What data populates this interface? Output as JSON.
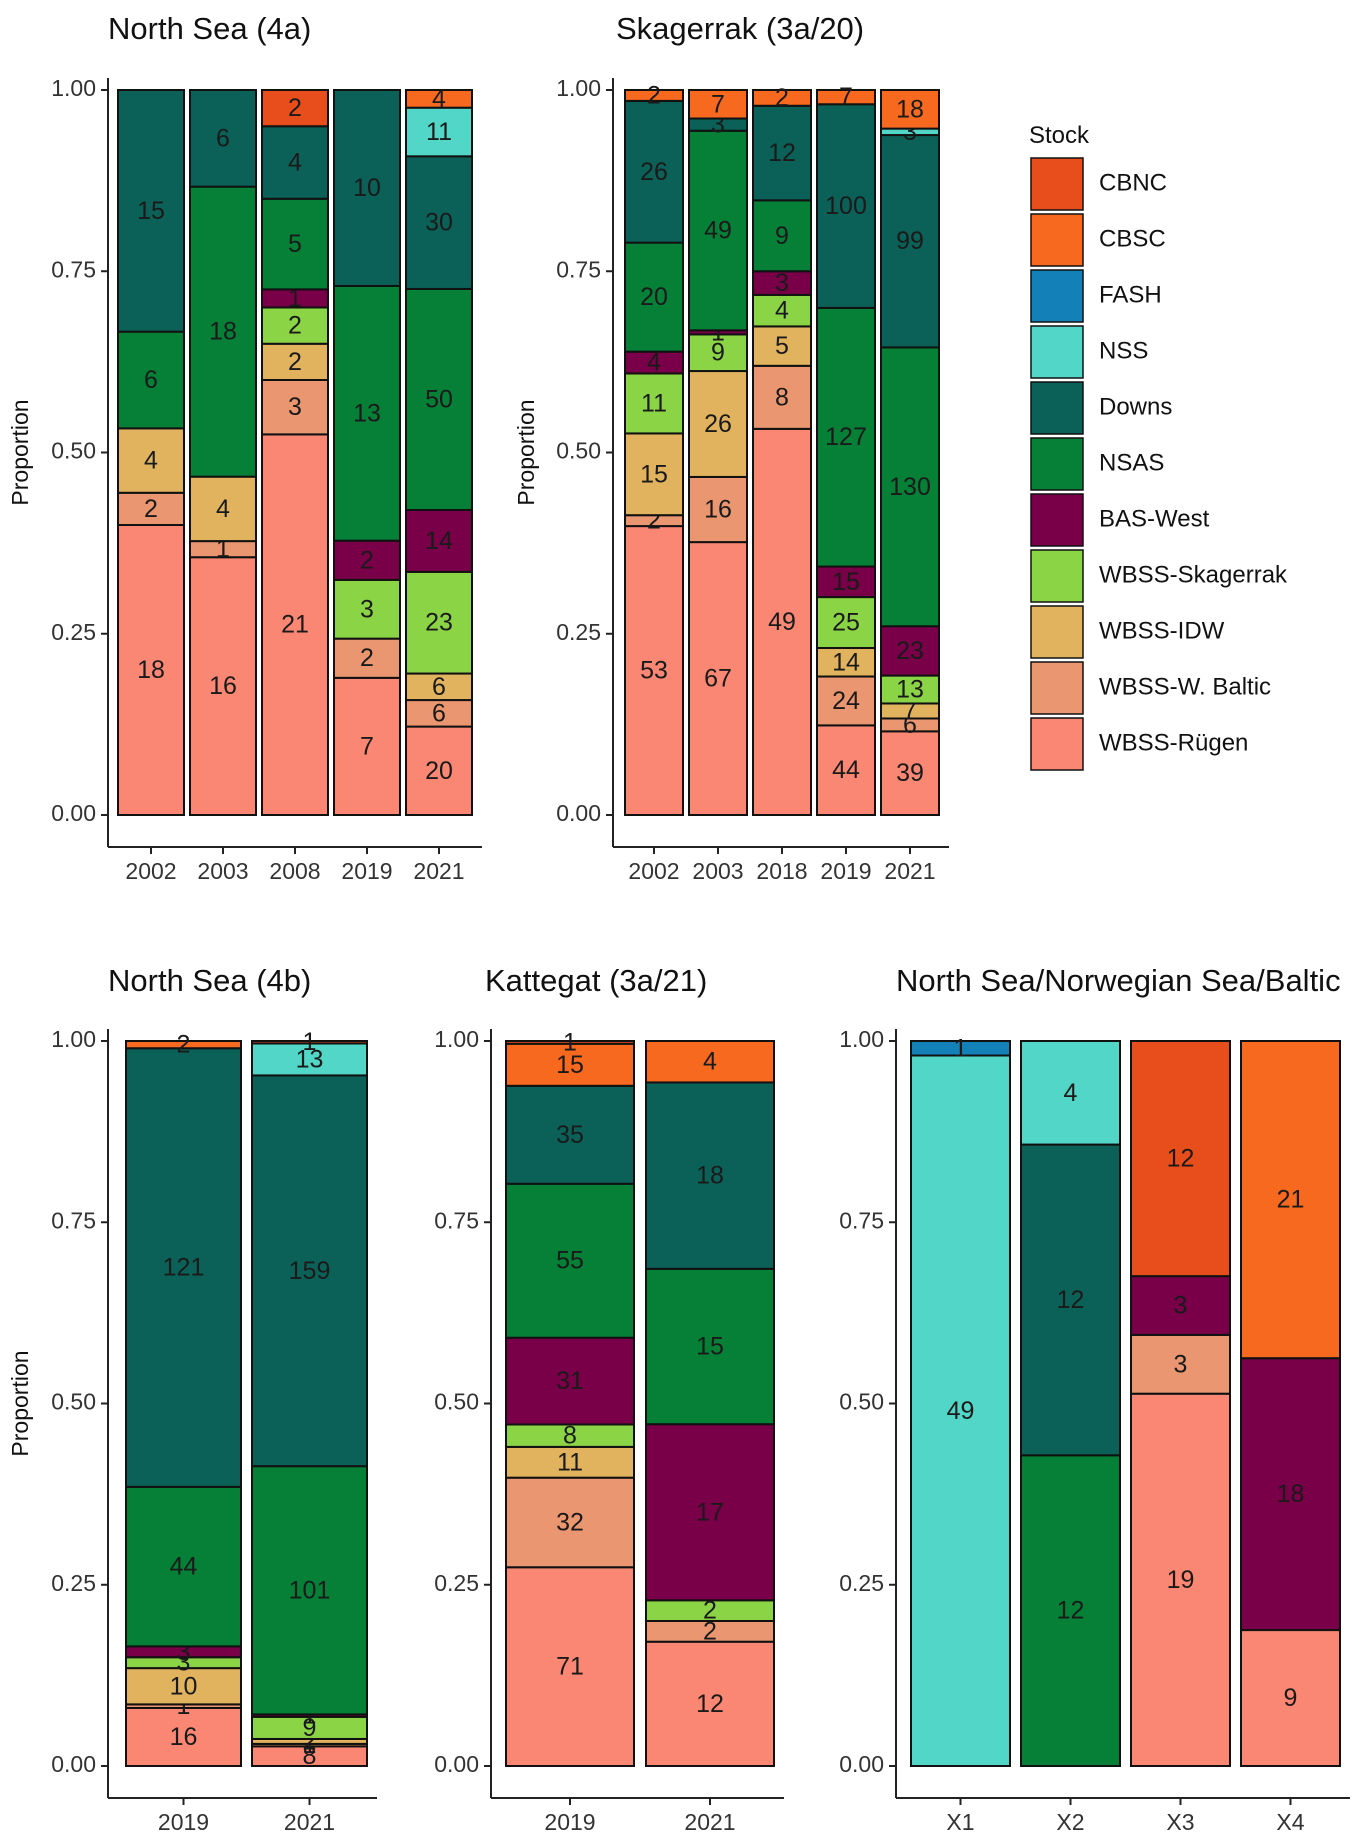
{
  "chart_data": [
    {
      "type": "bar",
      "stacked": true,
      "normalized": true,
      "title": "North Sea (4a)",
      "ylabel": "Proportion",
      "ylim": [
        0,
        1
      ],
      "yticks": [
        "0.00",
        "0.25",
        "0.50",
        "0.75",
        "1.00"
      ],
      "categories": [
        "2002",
        "2003",
        "2008",
        "2019",
        "2021"
      ],
      "series": [
        {
          "name": "WBSS-Rügen",
          "values": [
            18,
            16,
            21,
            7,
            20
          ]
        },
        {
          "name": "WBSS-W. Baltic",
          "values": [
            2,
            1,
            3,
            2,
            6
          ]
        },
        {
          "name": "WBSS-IDW",
          "values": [
            4,
            4,
            2,
            0,
            6
          ]
        },
        {
          "name": "WBSS-Skagerrak",
          "values": [
            0,
            0,
            2,
            3,
            23
          ]
        },
        {
          "name": "BAS-West",
          "values": [
            0,
            0,
            1,
            2,
            14
          ]
        },
        {
          "name": "NSAS",
          "values": [
            6,
            18,
            5,
            13,
            50
          ]
        },
        {
          "name": "Downs",
          "values": [
            15,
            6,
            4,
            10,
            30
          ]
        },
        {
          "name": "NSS",
          "values": [
            0,
            0,
            0,
            0,
            11
          ]
        },
        {
          "name": "FASH",
          "values": [
            0,
            0,
            0,
            0,
            0
          ]
        },
        {
          "name": "CBSC",
          "values": [
            0,
            0,
            0,
            0,
            4
          ]
        },
        {
          "name": "CBNC",
          "values": [
            0,
            0,
            2,
            0,
            0
          ]
        }
      ]
    },
    {
      "type": "bar",
      "stacked": true,
      "normalized": true,
      "title": "Skagerrak (3a/20)",
      "ylabel": "Proportion",
      "ylim": [
        0,
        1
      ],
      "yticks": [
        "0.00",
        "0.25",
        "0.50",
        "0.75",
        "1.00"
      ],
      "categories": [
        "2002",
        "2003",
        "2018",
        "2019",
        "2021"
      ],
      "series": [
        {
          "name": "WBSS-Rügen",
          "values": [
            53,
            67,
            49,
            44,
            39
          ]
        },
        {
          "name": "WBSS-W. Baltic",
          "values": [
            2,
            16,
            8,
            24,
            6
          ]
        },
        {
          "name": "WBSS-IDW",
          "values": [
            15,
            26,
            5,
            14,
            7
          ]
        },
        {
          "name": "WBSS-Skagerrak",
          "values": [
            11,
            9,
            4,
            25,
            13
          ]
        },
        {
          "name": "BAS-West",
          "values": [
            4,
            1,
            3,
            15,
            23
          ]
        },
        {
          "name": "NSAS",
          "values": [
            20,
            49,
            9,
            127,
            130
          ]
        },
        {
          "name": "Downs",
          "values": [
            26,
            3,
            12,
            100,
            99
          ]
        },
        {
          "name": "NSS",
          "values": [
            0,
            0,
            0,
            0,
            3
          ]
        },
        {
          "name": "FASH",
          "values": [
            0,
            0,
            0,
            0,
            0
          ]
        },
        {
          "name": "CBSC",
          "values": [
            2,
            7,
            2,
            7,
            18
          ]
        },
        {
          "name": "CBNC",
          "values": [
            0,
            0,
            0,
            0,
            0
          ]
        }
      ]
    },
    {
      "type": "bar",
      "stacked": true,
      "normalized": true,
      "title": "North Sea (4b)",
      "ylabel": "Proportion",
      "ylim": [
        0,
        1
      ],
      "yticks": [
        "0.00",
        "0.25",
        "0.50",
        "0.75",
        "1.00"
      ],
      "categories": [
        "2019",
        "2021"
      ],
      "series": [
        {
          "name": "WBSS-Rügen",
          "values": [
            16,
            8
          ]
        },
        {
          "name": "WBSS-W. Baltic",
          "values": [
            1,
            1
          ]
        },
        {
          "name": "WBSS-IDW",
          "values": [
            10,
            2
          ]
        },
        {
          "name": "WBSS-Skagerrak",
          "values": [
            3,
            9
          ]
        },
        {
          "name": "BAS-West",
          "values": [
            3,
            1
          ]
        },
        {
          "name": "NSAS",
          "values": [
            44,
            101
          ]
        },
        {
          "name": "Downs",
          "values": [
            121,
            159
          ]
        },
        {
          "name": "NSS",
          "values": [
            0,
            13
          ]
        },
        {
          "name": "FASH",
          "values": [
            0,
            0
          ]
        },
        {
          "name": "CBSC",
          "values": [
            2,
            0
          ]
        },
        {
          "name": "CBNC",
          "values": [
            0,
            1
          ]
        }
      ]
    },
    {
      "type": "bar",
      "stacked": true,
      "normalized": true,
      "title": "Kattegat (3a/21)",
      "ylim": [
        0,
        1
      ],
      "yticks": [
        "0.00",
        "0.25",
        "0.50",
        "0.75",
        "1.00"
      ],
      "categories": [
        "2019",
        "2021"
      ],
      "series": [
        {
          "name": "WBSS-Rügen",
          "values": [
            71,
            12
          ]
        },
        {
          "name": "WBSS-W. Baltic",
          "values": [
            32,
            2
          ]
        },
        {
          "name": "WBSS-IDW",
          "values": [
            11,
            0
          ]
        },
        {
          "name": "WBSS-Skagerrak",
          "values": [
            8,
            2
          ]
        },
        {
          "name": "BAS-West",
          "values": [
            31,
            17
          ]
        },
        {
          "name": "NSAS",
          "values": [
            55,
            15
          ]
        },
        {
          "name": "Downs",
          "values": [
            35,
            18
          ]
        },
        {
          "name": "NSS",
          "values": [
            0,
            0
          ]
        },
        {
          "name": "FASH",
          "values": [
            0,
            0
          ]
        },
        {
          "name": "CBSC",
          "values": [
            15,
            4
          ]
        },
        {
          "name": "CBNC",
          "values": [
            1,
            0
          ]
        }
      ]
    },
    {
      "type": "bar",
      "stacked": true,
      "normalized": true,
      "title": "North Sea/Norwegian Sea/Baltic",
      "ylim": [
        0,
        1
      ],
      "yticks": [
        "0.00",
        "0.25",
        "0.50",
        "0.75",
        "1.00"
      ],
      "categories": [
        "X1",
        "X2",
        "X3",
        "X4"
      ],
      "series": [
        {
          "name": "WBSS-Rügen",
          "values": [
            0,
            0,
            19,
            9
          ]
        },
        {
          "name": "WBSS-W. Baltic",
          "values": [
            0,
            0,
            3,
            0
          ]
        },
        {
          "name": "WBSS-IDW",
          "values": [
            0,
            0,
            0,
            0
          ]
        },
        {
          "name": "WBSS-Skagerrak",
          "values": [
            0,
            0,
            0,
            0
          ]
        },
        {
          "name": "BAS-West",
          "values": [
            0,
            0,
            3,
            18
          ]
        },
        {
          "name": "NSAS",
          "values": [
            0,
            12,
            0,
            0
          ]
        },
        {
          "name": "Downs",
          "values": [
            0,
            12,
            0,
            0
          ]
        },
        {
          "name": "NSS",
          "values": [
            49,
            4,
            0,
            0
          ]
        },
        {
          "name": "FASH",
          "values": [
            1,
            0,
            0,
            0
          ]
        },
        {
          "name": "CBSC",
          "values": [
            0,
            0,
            0,
            21
          ]
        },
        {
          "name": "CBNC",
          "values": [
            0,
            0,
            12,
            0
          ]
        }
      ]
    }
  ],
  "legend": {
    "title": "Stock",
    "items": [
      {
        "name": "CBNC",
        "color": "#E84E1B"
      },
      {
        "name": "CBSC",
        "color": "#F6691F"
      },
      {
        "name": "FASH",
        "color": "#1380B8"
      },
      {
        "name": "NSS",
        "color": "#52D6C7"
      },
      {
        "name": "Downs",
        "color": "#0B6158"
      },
      {
        "name": "NSAS",
        "color": "#058036"
      },
      {
        "name": "BAS-West",
        "color": "#790048"
      },
      {
        "name": "WBSS-Skagerrak",
        "color": "#8BD446"
      },
      {
        "name": "WBSS-IDW",
        "color": "#E1B35E"
      },
      {
        "name": "WBSS-W. Baltic",
        "color": "#E99671"
      },
      {
        "name": "WBSS-Rügen",
        "color": "#FA8774"
      }
    ]
  }
}
